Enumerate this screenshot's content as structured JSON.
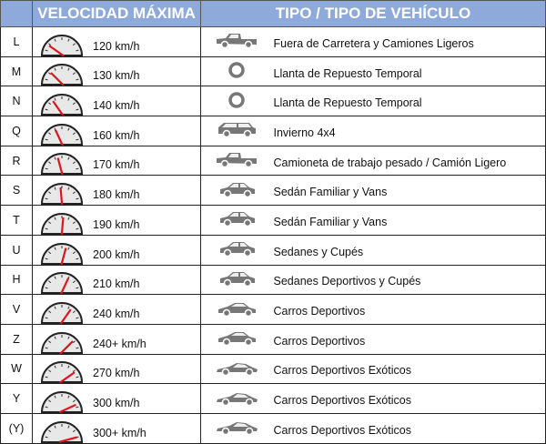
{
  "header": {
    "speed": "VELOCIDAD MÁXIMA",
    "type": "TIPO / TIPO DE VEHÍCULO"
  },
  "colors": {
    "header_bg": "#8eaadb",
    "needle": "#e0141e"
  },
  "rows": [
    {
      "code": "L",
      "speed": "120 km/h",
      "icon": "pickup-truck-icon",
      "type": "Fuera de Carretera y Camiones Ligeros"
    },
    {
      "code": "M",
      "speed": "130 km/h",
      "icon": "tire-icon",
      "type": "Llanta de Repuesto Temporal"
    },
    {
      "code": "N",
      "speed": "140 km/h",
      "icon": "tire-icon",
      "type": "Llanta de Repuesto Temporal"
    },
    {
      "code": "Q",
      "speed": "160 km/h",
      "icon": "suv-icon",
      "type": "Invierno 4x4"
    },
    {
      "code": "R",
      "speed": "170 km/h",
      "icon": "pickup-truck-icon",
      "type": "Camioneta de trabajo pesado / Camión Ligero"
    },
    {
      "code": "S",
      "speed": "180 km/h",
      "icon": "sedan-icon",
      "type": "Sedán Familiar y Vans"
    },
    {
      "code": "T",
      "speed": "190 km/h",
      "icon": "sedan-icon",
      "type": "Sedán Familiar y Vans"
    },
    {
      "code": "U",
      "speed": "200 km/h",
      "icon": "sedan-icon",
      "type": "Sedanes y Cupés"
    },
    {
      "code": "H",
      "speed": "210 km/h",
      "icon": "sedan-icon",
      "type": "Sedanes Deportivos y Cupés"
    },
    {
      "code": "V",
      "speed": "240 km/h",
      "icon": "coupe-icon",
      "type": "Carros Deportivos"
    },
    {
      "code": "Z",
      "speed": "240+ km/h",
      "icon": "coupe-icon",
      "type": "Carros Deportivos"
    },
    {
      "code": "W",
      "speed": "270 km/h",
      "icon": "sports-car-icon",
      "type": "Carros Deportivos Exóticos"
    },
    {
      "code": "Y",
      "speed": "300 km/h",
      "icon": "sports-car-icon",
      "type": "Carros Deportivos Exóticos"
    },
    {
      "code": "(Y)",
      "speed": "300+ km/h",
      "icon": "sports-car-icon",
      "type": "Carros Deportivos Exóticos"
    }
  ]
}
